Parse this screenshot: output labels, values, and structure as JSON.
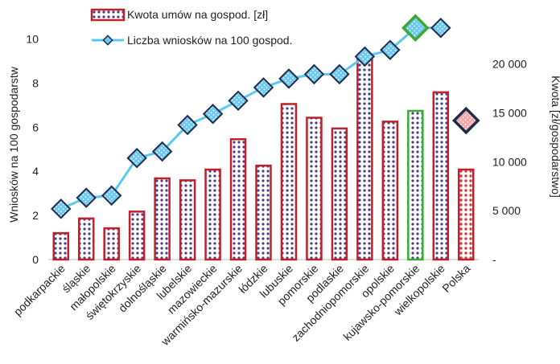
{
  "chart_data": {
    "type": "bar",
    "categories": [
      "podkarpackie",
      "śląskie",
      "małopolskie",
      "świętokrzyskie",
      "dolnośląskie",
      "lubelskie",
      "mazowieckie",
      "warmińsko-mazurskie",
      "łódzkie",
      "lubuskie",
      "pomorskie",
      "podlaskie",
      "zachodniopomorskie",
      "opolskie",
      "kujawsko-pomorskie",
      "wielkopolskie",
      "Polska"
    ],
    "series": [
      {
        "name": "Kwota umów na gospod. [zł]",
        "kind": "bar",
        "axis": "right",
        "values": [
          2700,
          4200,
          3200,
          4900,
          8300,
          8100,
          9200,
          12300,
          9600,
          15900,
          14500,
          13400,
          20800,
          14100,
          15200,
          17100,
          9200
        ]
      },
      {
        "name": "Liczba wniosków na 100 gospod.",
        "kind": "line",
        "axis": "left",
        "values": [
          2.3,
          2.8,
          2.9,
          4.6,
          4.9,
          6.1,
          6.6,
          7.2,
          7.8,
          8.2,
          8.4,
          8.4,
          9.2,
          9.5,
          10.5,
          10.5,
          6.3
        ]
      }
    ],
    "highlight": {
      "kujawsko-pomorskie": {
        "bar_border": "#3aaa35",
        "marker_border": "#3aaa35"
      },
      "Polska": {
        "bar_fill": "#e53935",
        "marker_fill": "#f4a7a7"
      }
    },
    "y_left": {
      "label": "Wniosków na 100 gospodarstw",
      "ticks": [
        "0",
        "2",
        "4",
        "6",
        "8",
        "10"
      ],
      "range": [
        0,
        11.4
      ]
    },
    "y_right": {
      "label": "Kwota [zł/gospodarstwo]",
      "ticks": [
        "-",
        "5 000",
        "10 000",
        "15 000",
        "20 000"
      ],
      "tick_values": [
        0,
        5000,
        10000,
        15000,
        20000
      ],
      "range": [
        0,
        25714
      ]
    },
    "legend_position": "top-left",
    "colors": {
      "bar_border": "#c0202a",
      "bar_pattern": "#4a3a8a",
      "line": "#5bc8f0",
      "marker_border": "#1f2d4d",
      "marker_fill": "#6cc8f0"
    }
  }
}
